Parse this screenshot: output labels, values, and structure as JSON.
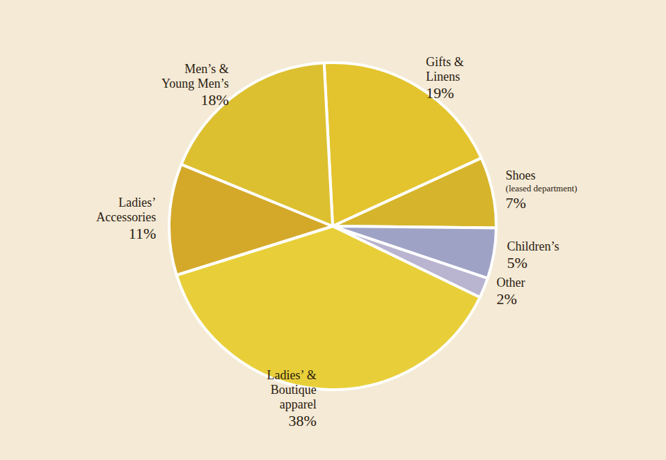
{
  "chart_data": {
    "type": "pie",
    "categories": [
      "Gifts & Linens",
      "Shoes (leased department)",
      "Children’s",
      "Other",
      "Ladies’ & Boutique apparel",
      "Ladies’ Accessories",
      "Men’s & Young Men’s"
    ],
    "values": [
      19,
      7,
      5,
      2,
      38,
      11,
      18
    ],
    "value_labels": [
      "19%",
      "7%",
      "5%",
      "2%",
      "38%",
      "11%",
      "18%"
    ],
    "colors": [
      "#e3c42e",
      "#d6b52c",
      "#9ea3c6",
      "#b9b4cf",
      "#e8cf3a",
      "#d4a92a",
      "#dcc030"
    ],
    "data_labels": true
  }
}
